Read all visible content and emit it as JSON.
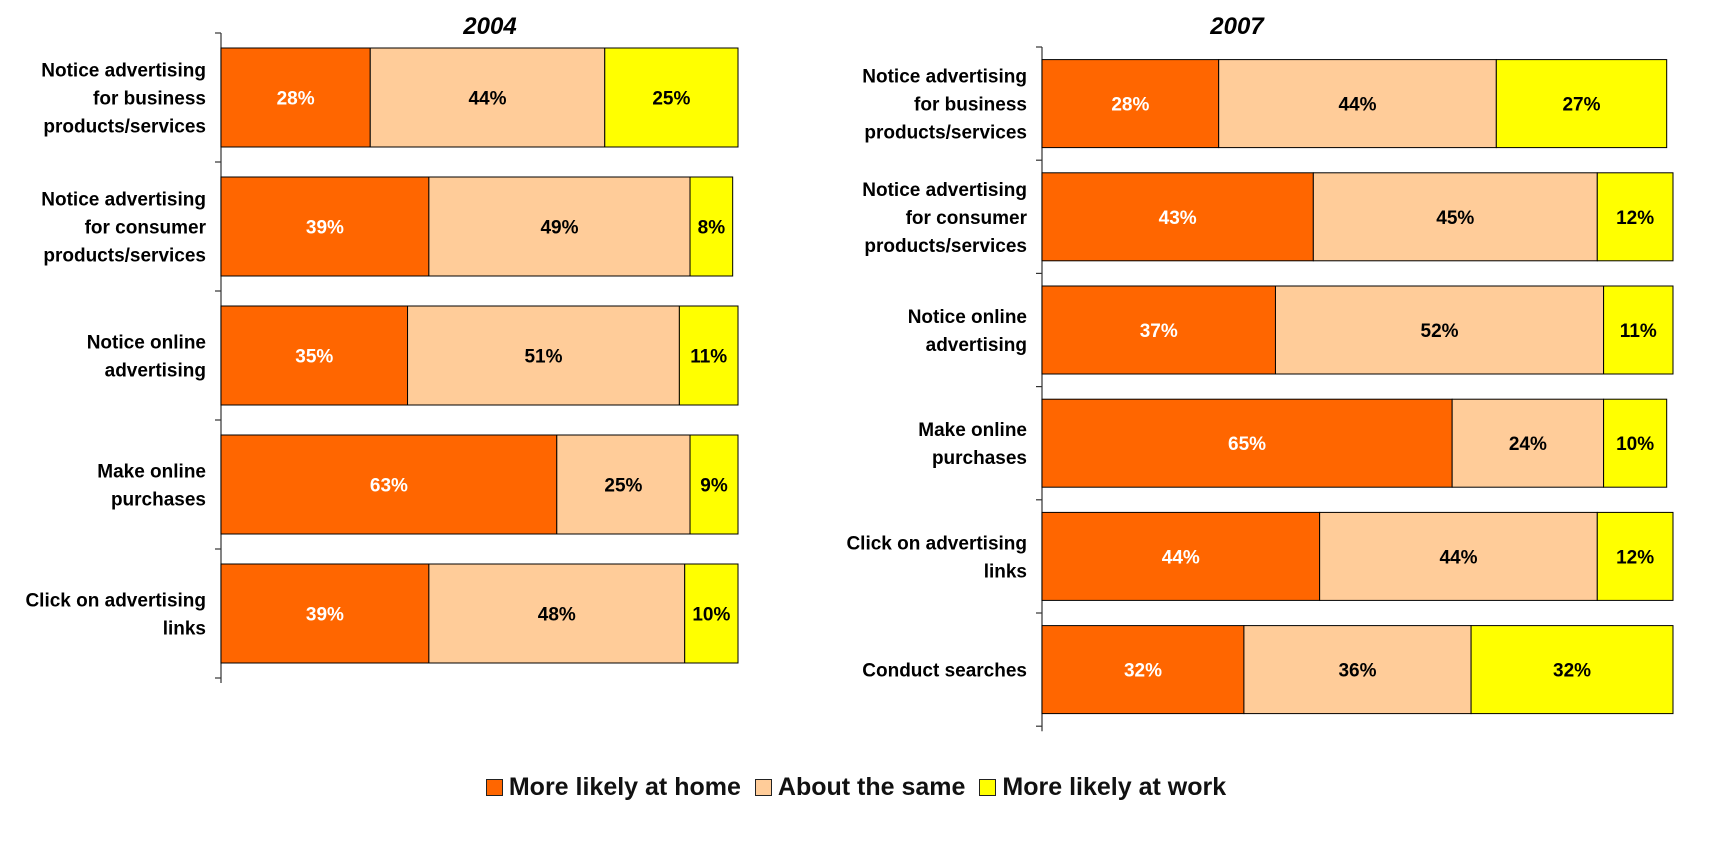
{
  "colors": {
    "home": "#ff6600",
    "same": "#ffcc99",
    "work": "#ffff00"
  },
  "legend": [
    {
      "label": "More likely at home",
      "color": "#ff6600"
    },
    {
      "label": "About the same",
      "color": "#ffcc99"
    },
    {
      "label": "More likely at work",
      "color": "#ffff00"
    }
  ],
  "chart_data": [
    {
      "type": "bar",
      "orientation": "horizontal",
      "stacked": true,
      "title": "2004",
      "categories": [
        [
          "Notice advertising",
          "for business",
          "products/services"
        ],
        [
          "Notice advertising",
          "for consumer",
          "products/services"
        ],
        [
          "Notice online",
          "advertising"
        ],
        [
          "Make online",
          "purchases"
        ],
        [
          "Click on advertising",
          "links"
        ]
      ],
      "series": [
        {
          "name": "More likely at home",
          "values": [
            28,
            39,
            35,
            63,
            39
          ]
        },
        {
          "name": "About the same",
          "values": [
            44,
            49,
            51,
            25,
            48
          ]
        },
        {
          "name": "More likely at work",
          "values": [
            25,
            8,
            11,
            9,
            10
          ]
        }
      ],
      "value_format": "%",
      "xlim": [
        0,
        100
      ],
      "grid": false
    },
    {
      "type": "bar",
      "orientation": "horizontal",
      "stacked": true,
      "title": "2007",
      "categories": [
        [
          "Notice advertising",
          "for business",
          "products/services"
        ],
        [
          "Notice advertising",
          "for consumer",
          "products/services"
        ],
        [
          "Notice online",
          "advertising"
        ],
        [
          "Make online",
          "purchases"
        ],
        [
          "Click on advertising",
          "links"
        ],
        [
          "Conduct searches"
        ]
      ],
      "series": [
        {
          "name": "More likely at home",
          "values": [
            28,
            43,
            37,
            65,
            44,
            32
          ]
        },
        {
          "name": "About the same",
          "values": [
            44,
            45,
            52,
            24,
            44,
            36
          ]
        },
        {
          "name": "More likely at work",
          "values": [
            27,
            12,
            11,
            10,
            12,
            32
          ]
        }
      ],
      "value_format": "%",
      "xlim": [
        0,
        100
      ],
      "grid": false
    }
  ]
}
